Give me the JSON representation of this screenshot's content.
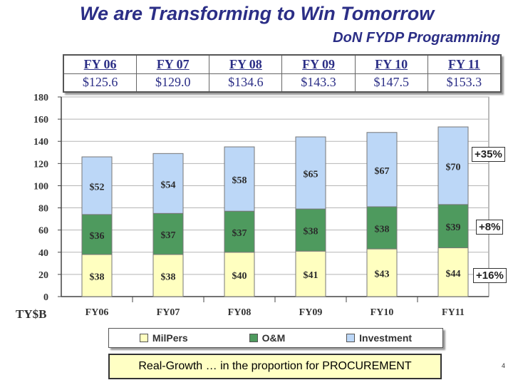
{
  "header": {
    "title": "We are Transforming to Win Tomorrow",
    "subtitle": "DoN FYDP Programming"
  },
  "totals_table": {
    "years": [
      "FY 06",
      "FY 07",
      "FY 08",
      "FY 09",
      "FY 10",
      "FY 11"
    ],
    "totals": [
      "$125.6",
      "$129.0",
      "$134.6",
      "$143.3",
      "$147.5",
      "$153.3"
    ]
  },
  "chart_data": {
    "type": "bar",
    "stacked": true,
    "categories": [
      "FY06",
      "FY07",
      "FY08",
      "FY09",
      "FY10",
      "FY11"
    ],
    "ylim": [
      0,
      180
    ],
    "yticks": [
      0,
      20,
      40,
      60,
      80,
      100,
      120,
      140,
      160,
      180
    ],
    "ylabel": "TY$B",
    "grid": true,
    "series": [
      {
        "name": "MilPers",
        "values": [
          38,
          38,
          40,
          41,
          43,
          44
        ],
        "labels": [
          "$38",
          "$38",
          "$40",
          "$41",
          "$43",
          "$44"
        ],
        "color": "#ffffc0"
      },
      {
        "name": "O&M",
        "values": [
          36,
          37,
          37,
          38,
          38,
          39
        ],
        "labels": [
          "$36",
          "$37",
          "$37",
          "$38",
          "$38",
          "$39"
        ],
        "color": "#4e9a5e"
      },
      {
        "name": "Investment",
        "values": [
          52,
          54,
          58,
          65,
          67,
          70
        ],
        "labels": [
          "$52",
          "$54",
          "$58",
          "$65",
          "$67",
          "$70"
        ],
        "color": "#bcd7f7"
      }
    ],
    "annotations": [
      "+35%",
      "+8%",
      "+16%"
    ],
    "legend_placement": "bottom"
  },
  "footer": {
    "banner": "Real-Growth … in the proportion for PROCUREMENT",
    "page_number": "4"
  }
}
